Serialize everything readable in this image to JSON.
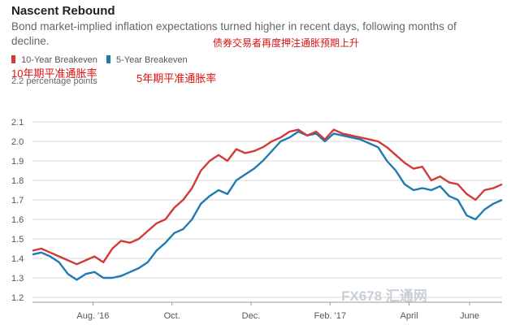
{
  "header": {
    "title": "Nascent Rebound",
    "subtitle": "Bond market-implied inflation expectations turned higher in recent days, following months of decline.",
    "annotation_cn_top": "债券交易者再度押注通胀预期上升",
    "annotation_cn_10y": "10年期平准通胀率",
    "annotation_cn_5y": "5年期平准通胀率",
    "unit_label": "2.2 percentage points"
  },
  "watermark": {
    "text": "FX678 汇通网"
  },
  "colors": {
    "ten_year": "#d23a3a",
    "five_year": "#1f7ab3",
    "grid": "#d9d9d9",
    "axis_text": "#555555"
  },
  "chart_data": {
    "type": "line",
    "title": "Nascent Rebound",
    "ylabel": "2.2 percentage points",
    "ylim": [
      1.2,
      2.2
    ],
    "yticks": [
      "1.2",
      "1.3",
      "1.4",
      "1.5",
      "1.6",
      "1.7",
      "1.8",
      "1.9",
      "2.0",
      "2.1"
    ],
    "xlim": [
      0,
      48
    ],
    "xticks": [
      {
        "x": 6.5,
        "label": "Aug. '16"
      },
      {
        "x": 15,
        "label": "Oct."
      },
      {
        "x": 23.5,
        "label": "Dec."
      },
      {
        "x": 32,
        "label": "Feb. '17"
      },
      {
        "x": 40.5,
        "label": "April"
      },
      {
        "x": 47,
        "label": "June"
      }
    ],
    "legend": {
      "position": "top-left"
    },
    "series": [
      {
        "name": "10-Year Breakeven",
        "color": "#d23a3a",
        "points": [
          [
            0,
            1.44
          ],
          [
            1,
            1.45
          ],
          [
            2,
            1.43
          ],
          [
            3,
            1.41
          ],
          [
            4,
            1.39
          ],
          [
            5,
            1.37
          ],
          [
            6,
            1.39
          ],
          [
            7,
            1.41
          ],
          [
            8,
            1.38
          ],
          [
            9,
            1.45
          ],
          [
            10,
            1.49
          ],
          [
            11,
            1.48
          ],
          [
            12,
            1.5
          ],
          [
            13,
            1.54
          ],
          [
            14,
            1.58
          ],
          [
            15,
            1.6
          ],
          [
            16,
            1.66
          ],
          [
            17,
            1.7
          ],
          [
            18,
            1.76
          ],
          [
            19,
            1.85
          ],
          [
            20,
            1.9
          ],
          [
            21,
            1.93
          ],
          [
            22,
            1.9
          ],
          [
            23,
            1.96
          ],
          [
            24,
            1.94
          ],
          [
            25,
            1.95
          ],
          [
            26,
            1.97
          ],
          [
            27,
            2.0
          ],
          [
            28,
            2.02
          ],
          [
            29,
            2.05
          ],
          [
            30,
            2.06
          ],
          [
            31,
            2.03
          ],
          [
            32,
            2.05
          ],
          [
            33,
            2.01
          ],
          [
            34,
            2.06
          ],
          [
            35,
            2.04
          ],
          [
            36,
            2.03
          ],
          [
            37,
            2.02
          ],
          [
            38,
            2.01
          ],
          [
            39,
            2.0
          ],
          [
            40,
            1.97
          ],
          [
            41,
            1.93
          ],
          [
            42,
            1.89
          ],
          [
            43,
            1.86
          ],
          [
            44,
            1.87
          ],
          [
            45,
            1.8
          ],
          [
            46,
            1.82
          ],
          [
            47,
            1.79
          ],
          [
            48,
            1.78
          ],
          [
            49,
            1.73
          ],
          [
            50,
            1.7
          ],
          [
            51,
            1.75
          ],
          [
            52,
            1.76
          ],
          [
            53,
            1.78
          ]
        ]
      },
      {
        "name": "5-Year Breakeven",
        "color": "#1f7ab3",
        "points": [
          [
            0,
            1.42
          ],
          [
            1,
            1.43
          ],
          [
            2,
            1.41
          ],
          [
            3,
            1.38
          ],
          [
            4,
            1.32
          ],
          [
            5,
            1.29
          ],
          [
            6,
            1.32
          ],
          [
            7,
            1.33
          ],
          [
            8,
            1.3
          ],
          [
            9,
            1.3
          ],
          [
            10,
            1.31
          ],
          [
            11,
            1.33
          ],
          [
            12,
            1.35
          ],
          [
            13,
            1.38
          ],
          [
            14,
            1.44
          ],
          [
            15,
            1.48
          ],
          [
            16,
            1.53
          ],
          [
            17,
            1.55
          ],
          [
            18,
            1.6
          ],
          [
            19,
            1.68
          ],
          [
            20,
            1.72
          ],
          [
            21,
            1.75
          ],
          [
            22,
            1.73
          ],
          [
            23,
            1.8
          ],
          [
            24,
            1.83
          ],
          [
            25,
            1.86
          ],
          [
            26,
            1.9
          ],
          [
            27,
            1.95
          ],
          [
            28,
            2.0
          ],
          [
            29,
            2.02
          ],
          [
            30,
            2.05
          ],
          [
            31,
            2.03
          ],
          [
            32,
            2.04
          ],
          [
            33,
            2.0
          ],
          [
            34,
            2.04
          ],
          [
            35,
            2.03
          ],
          [
            36,
            2.02
          ],
          [
            37,
            2.01
          ],
          [
            38,
            1.99
          ],
          [
            39,
            1.97
          ],
          [
            40,
            1.9
          ],
          [
            41,
            1.85
          ],
          [
            42,
            1.78
          ],
          [
            43,
            1.75
          ],
          [
            44,
            1.76
          ],
          [
            45,
            1.75
          ],
          [
            46,
            1.77
          ],
          [
            47,
            1.72
          ],
          [
            48,
            1.7
          ],
          [
            49,
            1.62
          ],
          [
            50,
            1.6
          ],
          [
            51,
            1.65
          ],
          [
            52,
            1.68
          ],
          [
            53,
            1.7
          ]
        ]
      }
    ]
  }
}
